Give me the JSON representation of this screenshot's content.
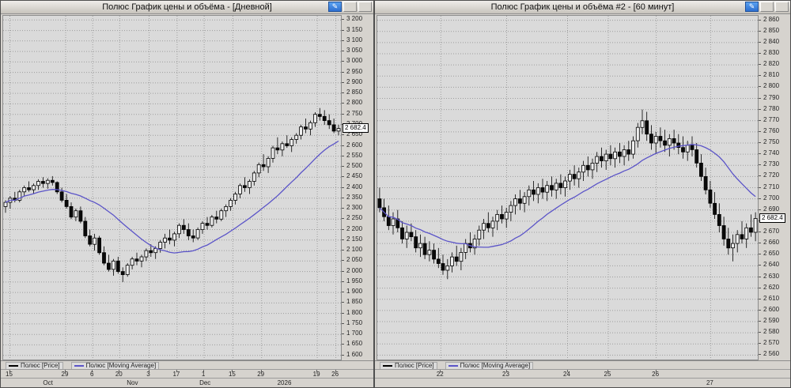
{
  "windows": [
    {
      "title": "Полюс График цены и объёма - [Дневной]",
      "buttons": {
        "edit": "✎"
      }
    },
    {
      "title": "Полюс График цены и объёма #2 - [60 минут]",
      "buttons": {
        "edit": "✎"
      }
    }
  ],
  "chart_data": [
    {
      "type": "candlestick",
      "title": "Полюс График цены и объёма - [Дневной]",
      "instrument": "Полюс",
      "timeframe": "Дневной",
      "y_min": 1600,
      "y_max": 3200,
      "y_step": 50,
      "y_domain": [
        1580,
        3220
      ],
      "ma_period": 20,
      "ma_color": "#5b54c8",
      "last_close": 2682.4,
      "last_price_label": "2 682.4",
      "x_ticks": [
        {
          "label": "15",
          "f": 0.02
        },
        {
          "label": "29",
          "f": 0.185
        },
        {
          "label": "6",
          "f": 0.265
        },
        {
          "label": "20",
          "f": 0.345
        },
        {
          "label": "3",
          "f": 0.432
        },
        {
          "label": "17",
          "f": 0.515
        },
        {
          "label": "1",
          "f": 0.595
        },
        {
          "label": "15",
          "f": 0.68
        },
        {
          "label": "29",
          "f": 0.765
        },
        {
          "label": "19",
          "f": 0.93
        },
        {
          "label": "26",
          "f": 0.985
        }
      ],
      "x_periods": [
        {
          "label": "Oct",
          "f": 0.135
        },
        {
          "label": "Nov",
          "f": 0.385
        },
        {
          "label": "Dec",
          "f": 0.6
        },
        {
          "label": "2026",
          "f": 0.835
        }
      ],
      "legend": [
        {
          "label": "Полюс [Price]",
          "color": "#000000"
        },
        {
          "label": "Полюс [Moving Average]",
          "color": "#5b54c8"
        }
      ],
      "candles": [
        [
          2310,
          2340,
          2280,
          2330
        ],
        [
          2330,
          2360,
          2300,
          2350
        ],
        [
          2350,
          2380,
          2330,
          2340
        ],
        [
          2340,
          2390,
          2330,
          2380
        ],
        [
          2380,
          2410,
          2360,
          2400
        ],
        [
          2400,
          2430,
          2380,
          2390
        ],
        [
          2390,
          2420,
          2370,
          2410
        ],
        [
          2410,
          2440,
          2390,
          2430
        ],
        [
          2430,
          2450,
          2400,
          2420
        ],
        [
          2420,
          2445,
          2395,
          2435
        ],
        [
          2435,
          2455,
          2410,
          2425
        ],
        [
          2425,
          2430,
          2370,
          2380
        ],
        [
          2380,
          2400,
          2330,
          2340
        ],
        [
          2340,
          2370,
          2300,
          2310
        ],
        [
          2310,
          2330,
          2250,
          2260
        ],
        [
          2260,
          2300,
          2240,
          2290
        ],
        [
          2290,
          2310,
          2230,
          2240
        ],
        [
          2240,
          2260,
          2160,
          2170
        ],
        [
          2170,
          2200,
          2120,
          2130
        ],
        [
          2130,
          2180,
          2100,
          2160
        ],
        [
          2160,
          2170,
          2080,
          2090
        ],
        [
          2090,
          2120,
          2030,
          2040
        ],
        [
          2040,
          2080,
          2000,
          2010
        ],
        [
          2010,
          2060,
          1980,
          2050
        ],
        [
          2050,
          2070,
          1990,
          2000
        ],
        [
          2000,
          2020,
          1950,
          1985
        ],
        [
          1985,
          2040,
          1975,
          2030
        ],
        [
          2030,
          2070,
          2010,
          2060
        ],
        [
          2060,
          2090,
          2030,
          2050
        ],
        [
          2050,
          2080,
          2020,
          2070
        ],
        [
          2070,
          2110,
          2050,
          2100
        ],
        [
          2100,
          2130,
          2070,
          2090
        ],
        [
          2090,
          2120,
          2060,
          2110
        ],
        [
          2110,
          2150,
          2090,
          2140
        ],
        [
          2140,
          2180,
          2110,
          2160
        ],
        [
          2160,
          2200,
          2130,
          2150
        ],
        [
          2150,
          2190,
          2120,
          2180
        ],
        [
          2180,
          2230,
          2160,
          2220
        ],
        [
          2220,
          2250,
          2180,
          2200
        ],
        [
          2200,
          2230,
          2150,
          2170
        ],
        [
          2170,
          2200,
          2140,
          2160
        ],
        [
          2160,
          2210,
          2150,
          2200
        ],
        [
          2200,
          2240,
          2180,
          2230
        ],
        [
          2230,
          2260,
          2200,
          2220
        ],
        [
          2220,
          2270,
          2210,
          2260
        ],
        [
          2260,
          2290,
          2230,
          2250
        ],
        [
          2250,
          2300,
          2240,
          2290
        ],
        [
          2290,
          2320,
          2260,
          2310
        ],
        [
          2310,
          2350,
          2290,
          2340
        ],
        [
          2340,
          2380,
          2320,
          2370
        ],
        [
          2370,
          2420,
          2350,
          2410
        ],
        [
          2410,
          2450,
          2380,
          2400
        ],
        [
          2400,
          2440,
          2370,
          2430
        ],
        [
          2430,
          2480,
          2410,
          2470
        ],
        [
          2470,
          2520,
          2450,
          2510
        ],
        [
          2510,
          2560,
          2480,
          2500
        ],
        [
          2500,
          2550,
          2470,
          2540
        ],
        [
          2540,
          2600,
          2520,
          2590
        ],
        [
          2590,
          2640,
          2560,
          2580
        ],
        [
          2580,
          2620,
          2550,
          2610
        ],
        [
          2610,
          2650,
          2590,
          2600
        ],
        [
          2600,
          2640,
          2570,
          2630
        ],
        [
          2630,
          2660,
          2610,
          2650
        ],
        [
          2650,
          2700,
          2630,
          2690
        ],
        [
          2690,
          2730,
          2660,
          2680
        ],
        [
          2680,
          2720,
          2650,
          2710
        ],
        [
          2710,
          2760,
          2690,
          2750
        ],
        [
          2750,
          2780,
          2720,
          2740
        ],
        [
          2740,
          2770,
          2700,
          2720
        ],
        [
          2720,
          2750,
          2680,
          2700
        ],
        [
          2700,
          2730,
          2660,
          2670
        ],
        [
          2670,
          2700,
          2650,
          2682.4
        ]
      ]
    },
    {
      "type": "candlestick",
      "title": "Полюс График цены и объёма #2 - [60 минут]",
      "instrument": "Полюс",
      "timeframe": "60 минут",
      "y_min": 2560,
      "y_max": 2860,
      "y_step": 10,
      "y_domain": [
        2556,
        2864
      ],
      "ma_period": 20,
      "ma_color": "#5b54c8",
      "last_close": 2682.4,
      "last_price_label": "2 682.4",
      "x_ticks": [
        {
          "label": "22",
          "f": 0.167
        },
        {
          "label": "23",
          "f": 0.34
        },
        {
          "label": "24",
          "f": 0.5
        },
        {
          "label": "25",
          "f": 0.607
        },
        {
          "label": "26",
          "f": 0.733
        }
      ],
      "x_periods": [
        {
          "label": "27",
          "f": 0.876
        }
      ],
      "legend": [
        {
          "label": "Полюс [Price]",
          "color": "#000000"
        },
        {
          "label": "Полюс [Moving Average]",
          "color": "#5b54c8"
        }
      ],
      "candles": [
        [
          2700,
          2710,
          2688,
          2692
        ],
        [
          2692,
          2700,
          2680,
          2684
        ],
        [
          2684,
          2694,
          2672,
          2676
        ],
        [
          2676,
          2688,
          2668,
          2682
        ],
        [
          2682,
          2690,
          2670,
          2674
        ],
        [
          2674,
          2680,
          2660,
          2664
        ],
        [
          2664,
          2676,
          2656,
          2670
        ],
        [
          2670,
          2678,
          2662,
          2666
        ],
        [
          2666,
          2672,
          2652,
          2656
        ],
        [
          2656,
          2668,
          2648,
          2660
        ],
        [
          2660,
          2666,
          2646,
          2650
        ],
        [
          2650,
          2662,
          2644,
          2654
        ],
        [
          2654,
          2660,
          2642,
          2646
        ],
        [
          2646,
          2656,
          2638,
          2642
        ],
        [
          2642,
          2650,
          2632,
          2636
        ],
        [
          2636,
          2646,
          2628,
          2640
        ],
        [
          2640,
          2652,
          2634,
          2648
        ],
        [
          2648,
          2658,
          2640,
          2644
        ],
        [
          2644,
          2656,
          2636,
          2652
        ],
        [
          2652,
          2664,
          2646,
          2660
        ],
        [
          2660,
          2670,
          2652,
          2656
        ],
        [
          2656,
          2668,
          2650,
          2664
        ],
        [
          2664,
          2676,
          2658,
          2672
        ],
        [
          2672,
          2682,
          2664,
          2678
        ],
        [
          2678,
          2688,
          2670,
          2674
        ],
        [
          2674,
          2684,
          2666,
          2680
        ],
        [
          2680,
          2690,
          2672,
          2686
        ],
        [
          2686,
          2694,
          2678,
          2682
        ],
        [
          2682,
          2692,
          2674,
          2688
        ],
        [
          2688,
          2698,
          2680,
          2694
        ],
        [
          2694,
          2704,
          2686,
          2700
        ],
        [
          2700,
          2708,
          2690,
          2696
        ],
        [
          2696,
          2706,
          2688,
          2702
        ],
        [
          2702,
          2712,
          2694,
          2708
        ],
        [
          2708,
          2716,
          2698,
          2704
        ],
        [
          2704,
          2714,
          2696,
          2710
        ],
        [
          2710,
          2718,
          2700,
          2706
        ],
        [
          2706,
          2716,
          2698,
          2712
        ],
        [
          2712,
          2720,
          2702,
          2708
        ],
        [
          2708,
          2718,
          2700,
          2714
        ],
        [
          2714,
          2722,
          2704,
          2710
        ],
        [
          2710,
          2720,
          2702,
          2716
        ],
        [
          2716,
          2726,
          2708,
          2722
        ],
        [
          2722,
          2730,
          2712,
          2718
        ],
        [
          2718,
          2728,
          2710,
          2724
        ],
        [
          2724,
          2734,
          2716,
          2730
        ],
        [
          2730,
          2738,
          2720,
          2726
        ],
        [
          2726,
          2736,
          2718,
          2732
        ],
        [
          2732,
          2742,
          2724,
          2738
        ],
        [
          2738,
          2746,
          2728,
          2734
        ],
        [
          2734,
          2744,
          2726,
          2740
        ],
        [
          2740,
          2748,
          2730,
          2736
        ],
        [
          2736,
          2746,
          2728,
          2742
        ],
        [
          2742,
          2750,
          2732,
          2738
        ],
        [
          2738,
          2748,
          2730,
          2744
        ],
        [
          2744,
          2752,
          2734,
          2740
        ],
        [
          2740,
          2756,
          2736,
          2752
        ],
        [
          2752,
          2768,
          2746,
          2764
        ],
        [
          2764,
          2780,
          2758,
          2770
        ],
        [
          2770,
          2778,
          2752,
          2758
        ],
        [
          2758,
          2766,
          2744,
          2750
        ],
        [
          2750,
          2760,
          2740,
          2756
        ],
        [
          2756,
          2764,
          2746,
          2752
        ],
        [
          2752,
          2762,
          2742,
          2748
        ],
        [
          2748,
          2758,
          2738,
          2754
        ],
        [
          2754,
          2762,
          2744,
          2750
        ],
        [
          2750,
          2758,
          2740,
          2746
        ],
        [
          2746,
          2756,
          2736,
          2742
        ],
        [
          2742,
          2752,
          2734,
          2748
        ],
        [
          2748,
          2756,
          2738,
          2744
        ],
        [
          2744,
          2750,
          2728,
          2732
        ],
        [
          2732,
          2740,
          2716,
          2720
        ],
        [
          2720,
          2728,
          2704,
          2708
        ],
        [
          2708,
          2716,
          2692,
          2696
        ],
        [
          2696,
          2706,
          2682,
          2686
        ],
        [
          2686,
          2696,
          2670,
          2676
        ],
        [
          2676,
          2684,
          2658,
          2664
        ],
        [
          2664,
          2674,
          2650,
          2656
        ],
        [
          2656,
          2668,
          2644,
          2660
        ],
        [
          2660,
          2672,
          2652,
          2668
        ],
        [
          2668,
          2680,
          2660,
          2664
        ],
        [
          2664,
          2678,
          2656,
          2674
        ],
        [
          2674,
          2686,
          2666,
          2670
        ],
        [
          2670,
          2688,
          2662,
          2682.4
        ]
      ]
    }
  ]
}
